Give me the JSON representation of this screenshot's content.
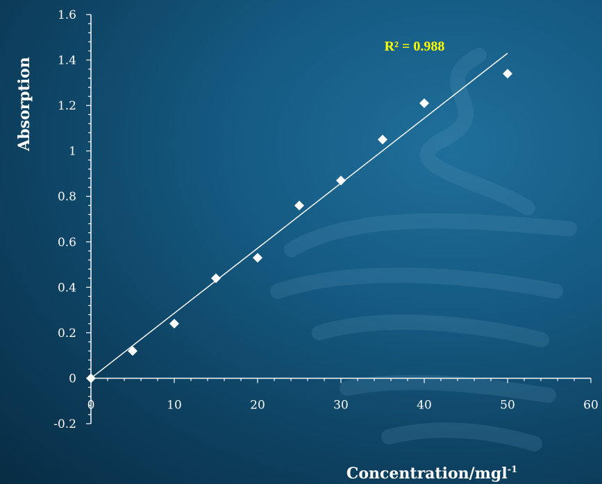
{
  "chart_data": {
    "type": "scatter",
    "xlabel": "Concentration/mgl",
    "xlabel_superscript": "-1",
    "ylabel": "Absorption",
    "xlim": [
      0,
      60
    ],
    "ylim": [
      -0.2,
      1.6
    ],
    "x_ticks": [
      "0",
      "10",
      "20",
      "30",
      "40",
      "50",
      "60"
    ],
    "y_ticks": [
      "-0.2",
      "0",
      "0.2",
      "0.4",
      "0.6",
      "0.8",
      "1",
      "1.2",
      "1.4",
      "1.6"
    ],
    "points": [
      {
        "x": 0,
        "y": 0
      },
      {
        "x": 5,
        "y": 0.12
      },
      {
        "x": 10,
        "y": 0.24
      },
      {
        "x": 15,
        "y": 0.44
      },
      {
        "x": 20,
        "y": 0.53
      },
      {
        "x": 25,
        "y": 0.76
      },
      {
        "x": 30,
        "y": 0.87
      },
      {
        "x": 35,
        "y": 1.05
      },
      {
        "x": 40,
        "y": 1.21
      },
      {
        "x": 50,
        "y": 1.34
      }
    ],
    "trendline": {
      "x0": 0,
      "y0": 0,
      "x1": 50,
      "y1": 1.43
    },
    "annotation": "R² = 0.988",
    "grid": false,
    "colors": {
      "points": "#ffffff",
      "axes": "#ffffff",
      "trendline": "#ffffff",
      "annotation": "#ffff00"
    }
  }
}
